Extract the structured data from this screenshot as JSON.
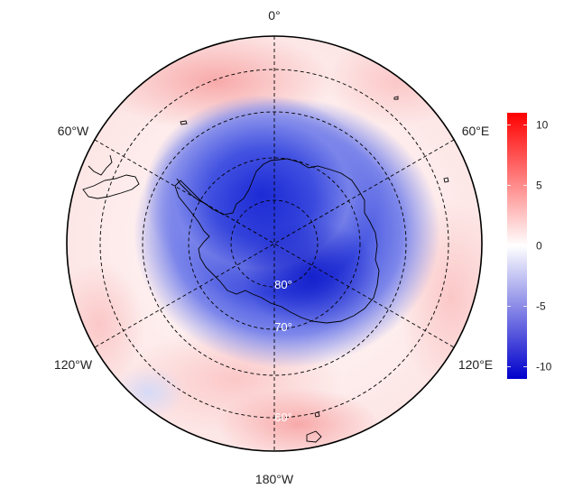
{
  "map": {
    "projection": "south-polar-stereographic",
    "lon_labels": {
      "lon_0": "0°",
      "lon_60e": "60°E",
      "lon_120e": "120°E",
      "lon_180": "180°W",
      "lon_120w": "120°W",
      "lon_60w": "60°W"
    },
    "lat_labels": {
      "lat_80": "80°",
      "lat_70": "70°",
      "lat_60": "60°"
    },
    "colors": {
      "negative_max": "#0000cc",
      "neutral": "#ffffff",
      "positive_max": "#ff0000",
      "coastline": "#000000",
      "gridline": "#000000"
    }
  },
  "colorbar": {
    "min": -11,
    "max": 11,
    "ticks": [
      "10",
      "5",
      "0",
      "-5",
      "-10"
    ]
  }
}
